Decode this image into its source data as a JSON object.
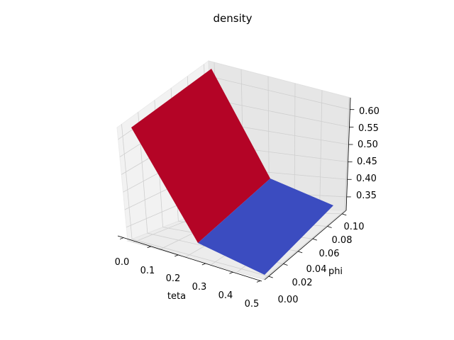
{
  "chart_data": {
    "type": "surface",
    "title": "density",
    "xlabel": "teta",
    "ylabel": "phi",
    "zlabel": "",
    "x_ticks": [
      "0.0",
      "0.1",
      "0.2",
      "0.3",
      "0.4",
      "0.5"
    ],
    "y_ticks": [
      "0.00",
      "0.02",
      "0.04",
      "0.06",
      "0.08",
      "0.10"
    ],
    "z_ticks": [
      "0.35",
      "0.40",
      "0.45",
      "0.50",
      "0.55",
      "0.60"
    ],
    "xlim": [
      0.0,
      0.5
    ],
    "ylim": [
      0.0,
      0.1
    ],
    "zlim": [
      0.32,
      0.62
    ],
    "grid": true,
    "colormap": "coolwarm",
    "surfaces": [
      {
        "name": "",
        "color": "#b40426",
        "corners": [
          {
            "teta": 0.0,
            "phi": 0.0,
            "density": 0.57
          },
          {
            "teta": 0.0,
            "phi": 0.1,
            "density": 0.62
          },
          {
            "teta": 0.25,
            "phi": 0.1,
            "density": 0.32
          },
          {
            "teta": 0.25,
            "phi": 0.0,
            "density": 0.32
          }
        ]
      },
      {
        "name": "",
        "color": "#3b4cc0",
        "corners": [
          {
            "teta": 0.25,
            "phi": 0.0,
            "density": 0.32
          },
          {
            "teta": 0.25,
            "phi": 0.1,
            "density": 0.32
          },
          {
            "teta": 0.5,
            "phi": 0.1,
            "density": 0.32
          },
          {
            "teta": 0.5,
            "phi": 0.0,
            "density": 0.32
          }
        ]
      }
    ]
  }
}
